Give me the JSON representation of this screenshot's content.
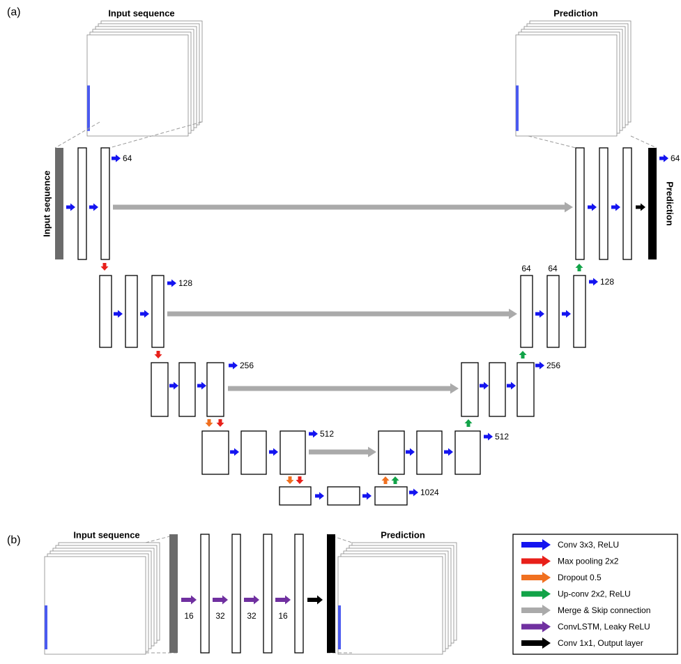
{
  "panel_a": {
    "label": "(a)",
    "input_title": "Input sequence",
    "output_title": "Prediction",
    "input_side_label": "Input sequence",
    "output_side_label": "Prediction",
    "channel_labels": [
      "64",
      "128",
      "256",
      "512",
      "1024",
      "512",
      "256",
      "128",
      "64"
    ],
    "decoder_top_labels": [
      "64",
      "64"
    ]
  },
  "panel_b": {
    "label": "(b)",
    "input_title": "Input sequence",
    "output_title": "Prediction",
    "layer_labels": [
      "16",
      "32",
      "32",
      "16"
    ]
  },
  "legend": [
    {
      "label": "Conv 3x3, ReLU",
      "color": "#1414f0"
    },
    {
      "label": "Max pooling 2x2",
      "color": "#e8201a"
    },
    {
      "label": "Dropout 0.5",
      "color": "#f07020"
    },
    {
      "label": "Up-conv 2x2, ReLU",
      "color": "#12a348"
    },
    {
      "label": "Merge & Skip connection",
      "color": "#aaaaaa"
    },
    {
      "label": "ConvLSTM, Leaky ReLU",
      "color": "#7030a0"
    },
    {
      "label": "Conv 1x1, Output layer",
      "color": "#000000"
    }
  ]
}
